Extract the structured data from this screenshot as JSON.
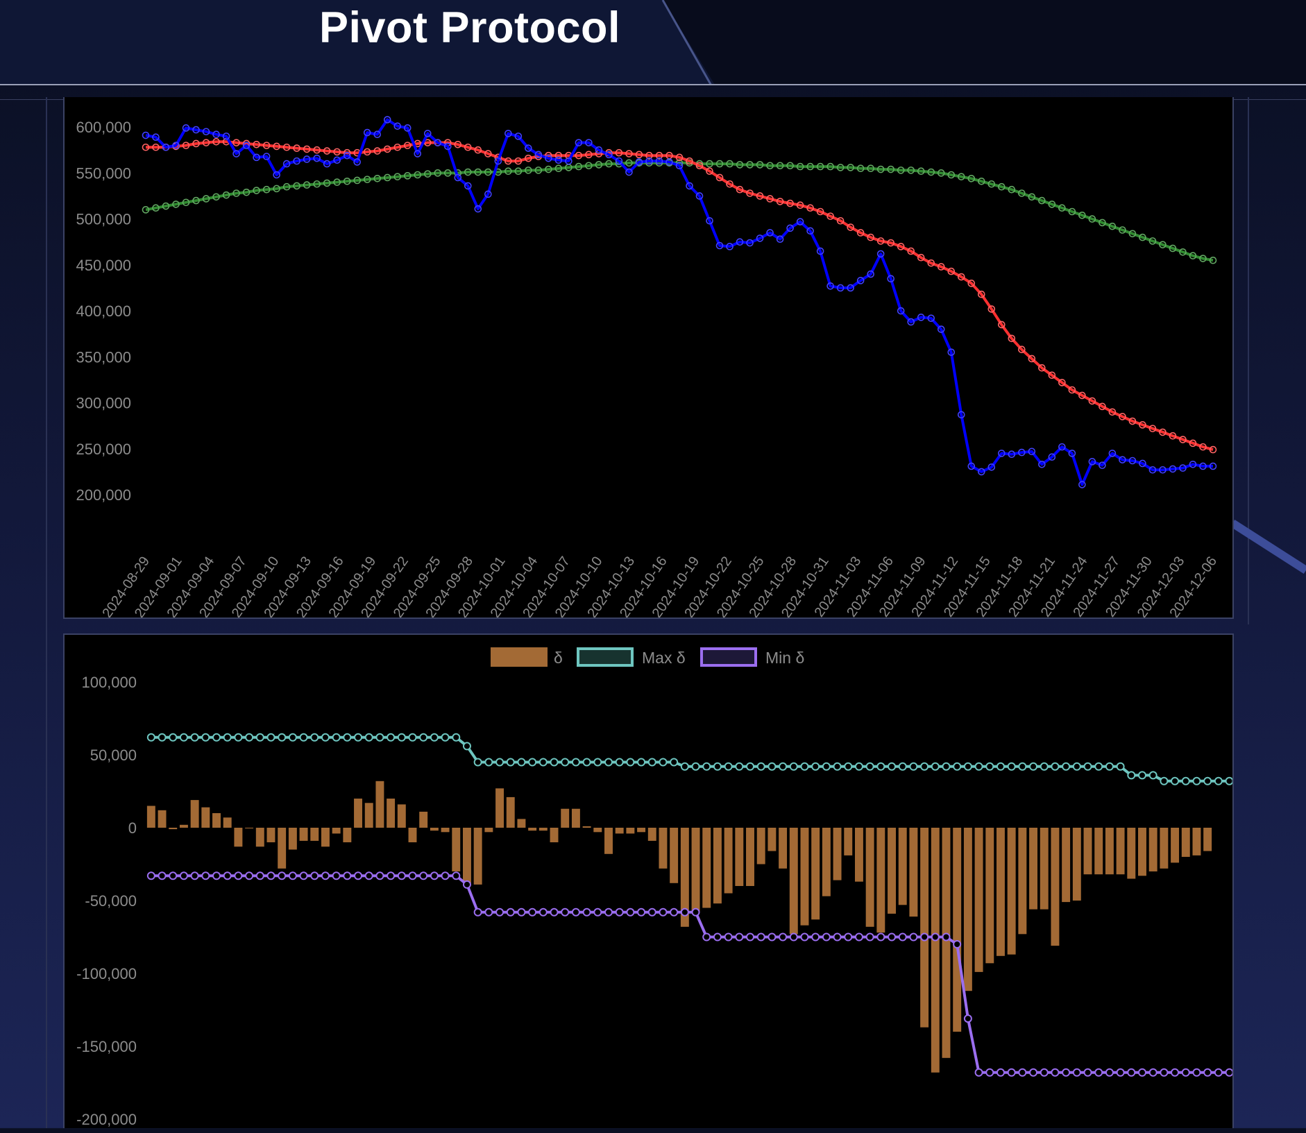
{
  "header": {
    "title": "Pivot Protocol"
  },
  "chart_data": [
    {
      "type": "line",
      "ylim": [
        160000,
        625000
      ],
      "y_ticks": [
        600000,
        550000,
        500000,
        450000,
        400000,
        350000,
        300000,
        250000,
        200000
      ],
      "y_tick_labels": [
        "600,000",
        "550,000",
        "500,000",
        "450,000",
        "400,000",
        "350,000",
        "300,000",
        "250,000",
        "200,000"
      ],
      "x_tick_labels": [
        "2024-08-29",
        "2024-09-01",
        "2024-09-04",
        "2024-09-07",
        "2024-09-10",
        "2024-09-13",
        "2024-09-16",
        "2024-09-19",
        "2024-09-22",
        "2024-09-25",
        "2024-09-28",
        "2024-10-01",
        "2024-10-04",
        "2024-10-07",
        "2024-10-10",
        "2024-10-13",
        "2024-10-16",
        "2024-10-19",
        "2024-10-22",
        "2024-10-25",
        "2024-10-28",
        "2024-10-31",
        "2024-11-03",
        "2024-11-06",
        "2024-11-09",
        "2024-11-12",
        "2024-11-15",
        "2024-11-18",
        "2024-11-21",
        "2024-11-24",
        "2024-11-27",
        "2024-11-30",
        "2024-12-03",
        "2024-12-06"
      ],
      "x_start": "2024-08-29",
      "x_end": "2024-12-06",
      "grid": false,
      "series": [
        {
          "color": "#0000ff",
          "values": [
            591000,
            589000,
            578000,
            580000,
            599000,
            597000,
            595000,
            592000,
            590000,
            571000,
            580000,
            567000,
            568000,
            548000,
            560000,
            563000,
            565000,
            566000,
            560000,
            564000,
            569000,
            562000,
            594000,
            592000,
            608000,
            601000,
            599000,
            571000,
            593000,
            583000,
            579000,
            545000,
            536000,
            511000,
            527000,
            563000,
            593000,
            590000,
            577000,
            570000,
            566000,
            564000,
            563000,
            583000,
            583000,
            575000,
            570000,
            563000,
            551000,
            562000,
            563000,
            563000,
            562000,
            558000,
            536000,
            525000,
            498000,
            471000,
            470000,
            475000,
            474000,
            479000,
            485000,
            478000,
            490000,
            497000,
            487000,
            465000,
            427000,
            425000,
            425000,
            433000,
            440000,
            462000,
            435000,
            400000,
            388000,
            393000,
            392000,
            380000,
            355000,
            287000,
            231000,
            225000,
            230000,
            245000,
            244000,
            246000,
            247000,
            233000,
            241000,
            252000,
            245000,
            211000,
            236000,
            232000,
            245000,
            238000,
            237000,
            234000,
            227000,
            227000,
            228000,
            229000,
            233000,
            231000,
            231000
          ]
        },
        {
          "color": "#ff3030",
          "values": [
            578000,
            578000,
            578000,
            579000,
            580000,
            582000,
            583000,
            584000,
            584000,
            583000,
            582000,
            581000,
            580000,
            579000,
            578000,
            577000,
            576000,
            575000,
            574000,
            573000,
            572000,
            572000,
            573000,
            574000,
            576000,
            578000,
            580000,
            582000,
            583000,
            583000,
            583000,
            581000,
            578000,
            575000,
            571000,
            567000,
            563000,
            563000,
            566000,
            568000,
            569000,
            569000,
            569000,
            569000,
            570000,
            571000,
            572000,
            572000,
            571000,
            570000,
            569000,
            569000,
            569000,
            567000,
            563000,
            558000,
            552000,
            545000,
            538000,
            532000,
            528000,
            525000,
            522000,
            519000,
            517000,
            515000,
            512000,
            508000,
            503000,
            498000,
            491000,
            485000,
            480000,
            476000,
            474000,
            470000,
            465000,
            458000,
            452000,
            448000,
            443000,
            437000,
            430000,
            418000,
            402000,
            385000,
            370000,
            358000,
            348000,
            338000,
            330000,
            322000,
            314000,
            308000,
            302000,
            296000,
            290000,
            285000,
            280000,
            276000,
            272000,
            268000,
            264000,
            260000,
            256000,
            252000,
            249000
          ]
        },
        {
          "color": "#2f8a2f",
          "values": [
            510000,
            512000,
            514000,
            516000,
            518000,
            520000,
            522000,
            524000,
            526000,
            528000,
            529000,
            531000,
            532000,
            533000,
            535000,
            536000,
            537000,
            538000,
            539000,
            540000,
            541000,
            542000,
            543000,
            544000,
            545000,
            546000,
            547000,
            548000,
            549000,
            550000,
            550000,
            550000,
            551000,
            551000,
            551000,
            551000,
            552000,
            552000,
            553000,
            553000,
            554000,
            555000,
            556000,
            557000,
            558000,
            559000,
            560000,
            560000,
            561000,
            561000,
            561000,
            561000,
            561000,
            561000,
            561000,
            560000,
            560000,
            560000,
            560000,
            559000,
            559000,
            559000,
            558000,
            558000,
            558000,
            557000,
            557000,
            557000,
            557000,
            556000,
            556000,
            555000,
            555000,
            554000,
            554000,
            553000,
            553000,
            552000,
            551000,
            550000,
            548000,
            546000,
            544000,
            541000,
            538000,
            535000,
            532000,
            528000,
            524000,
            520000,
            516000,
            512000,
            508000,
            504000,
            500000,
            496000,
            492000,
            488000,
            484000,
            480000,
            476000,
            472000,
            468000,
            464000,
            460000,
            457000,
            455000
          ]
        }
      ]
    },
    {
      "type": "bar",
      "ylim": [
        -200000,
        100000
      ],
      "y_ticks": [
        100000,
        50000,
        0,
        -50000,
        -100000,
        -150000,
        -200000
      ],
      "y_tick_labels": [
        "100,000",
        "50,000",
        "0",
        "-50,000",
        "-100,000",
        "-150,000",
        "-200,000"
      ],
      "legend": {
        "position": "top",
        "entries": [
          "δ",
          "Max δ",
          "Min δ"
        ]
      },
      "series": [
        {
          "name": "δ",
          "kind": "bar",
          "color": "#a36a35",
          "values": [
            15000,
            12000,
            -1000,
            2000,
            19000,
            14000,
            10000,
            7000,
            -13000,
            0,
            -13000,
            -10000,
            -28000,
            -15000,
            -9000,
            -9000,
            -13000,
            -4000,
            -10000,
            20000,
            17000,
            32000,
            20000,
            16000,
            -10000,
            11000,
            -2000,
            -3000,
            -30000,
            -38000,
            -39000,
            -3000,
            27000,
            21000,
            6000,
            -2000,
            -2000,
            -10000,
            13000,
            13000,
            1000,
            -3000,
            -18000,
            -4000,
            -4000,
            -3000,
            -9000,
            -28000,
            -38000,
            -68000,
            -58000,
            -55000,
            -52000,
            -45000,
            -40000,
            -40000,
            -25000,
            -16000,
            -28000,
            -73000,
            -67000,
            -63000,
            -47000,
            -36000,
            -19000,
            -37000,
            -68000,
            -72000,
            -59000,
            -53000,
            -61000,
            -137000,
            -168000,
            -158000,
            -140000,
            -112000,
            -99000,
            -93000,
            -88000,
            -87000,
            -73000,
            -56000,
            -56000,
            -81000,
            -51000,
            -50000,
            -32000,
            -32000,
            -32000,
            -32000,
            -35000,
            -33000,
            -30000,
            -28000,
            -24000,
            -20000,
            -19000,
            -16000
          ]
        },
        {
          "name": "Max δ",
          "kind": "line",
          "color": "#6ec6c0",
          "values": [
            62000,
            62000,
            62000,
            62000,
            62000,
            62000,
            62000,
            62000,
            62000,
            62000,
            62000,
            62000,
            62000,
            62000,
            62000,
            62000,
            62000,
            62000,
            62000,
            62000,
            62000,
            62000,
            62000,
            62000,
            62000,
            62000,
            62000,
            62000,
            62000,
            56000,
            45000,
            45000,
            45000,
            45000,
            45000,
            45000,
            45000,
            45000,
            45000,
            45000,
            45000,
            45000,
            45000,
            45000,
            45000,
            45000,
            45000,
            45000,
            45000,
            42000,
            42000,
            42000,
            42000,
            42000,
            42000,
            42000,
            42000,
            42000,
            42000,
            42000,
            42000,
            42000,
            42000,
            42000,
            42000,
            42000,
            42000,
            42000,
            42000,
            42000,
            42000,
            42000,
            42000,
            42000,
            42000,
            42000,
            42000,
            42000,
            42000,
            42000,
            42000,
            42000,
            42000,
            42000,
            42000,
            42000,
            42000,
            42000,
            42000,
            42000,
            36000,
            36000,
            36000,
            32000,
            32000,
            32000,
            32000,
            32000,
            32000,
            32000
          ]
        },
        {
          "name": "Min δ",
          "kind": "line",
          "color": "#9b6ef0",
          "values": [
            -33000,
            -33000,
            -33000,
            -33000,
            -33000,
            -33000,
            -33000,
            -33000,
            -33000,
            -33000,
            -33000,
            -33000,
            -33000,
            -33000,
            -33000,
            -33000,
            -33000,
            -33000,
            -33000,
            -33000,
            -33000,
            -33000,
            -33000,
            -33000,
            -33000,
            -33000,
            -33000,
            -33000,
            -33000,
            -39000,
            -58000,
            -58000,
            -58000,
            -58000,
            -58000,
            -58000,
            -58000,
            -58000,
            -58000,
            -58000,
            -58000,
            -58000,
            -58000,
            -58000,
            -58000,
            -58000,
            -58000,
            -58000,
            -58000,
            -58000,
            -58000,
            -75000,
            -75000,
            -75000,
            -75000,
            -75000,
            -75000,
            -75000,
            -75000,
            -75000,
            -75000,
            -75000,
            -75000,
            -75000,
            -75000,
            -75000,
            -75000,
            -75000,
            -75000,
            -75000,
            -75000,
            -75000,
            -75000,
            -75000,
            -80000,
            -131000,
            -168000,
            -168000,
            -168000,
            -168000,
            -168000,
            -168000,
            -168000,
            -168000,
            -168000,
            -168000,
            -168000,
            -168000,
            -168000,
            -168000,
            -168000,
            -168000,
            -168000,
            -168000,
            -168000,
            -168000,
            -168000,
            -168000,
            -168000,
            -168000
          ]
        }
      ]
    }
  ]
}
